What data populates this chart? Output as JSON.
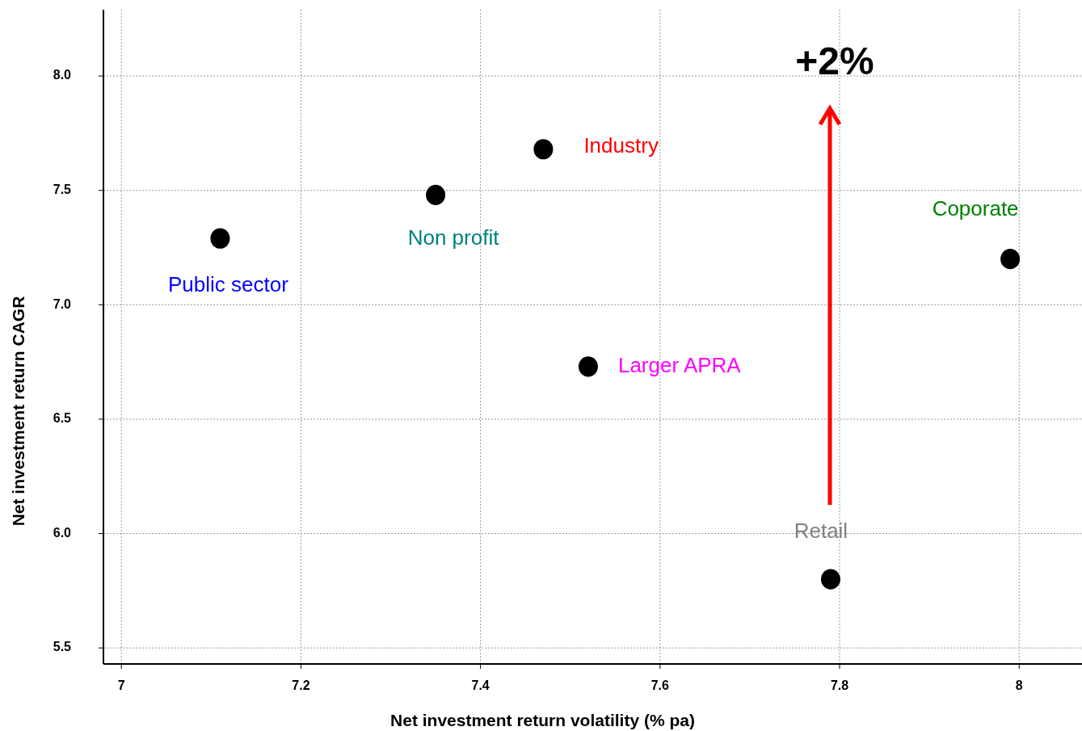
{
  "chart_data": {
    "type": "scatter",
    "xlabel": "Net investment return volatility (% pa)",
    "ylabel": "Net investment return CAGR",
    "xlim": [
      6.98,
      8.07
    ],
    "ylim": [
      5.43,
      8.29
    ],
    "xticks": [
      {
        "value": 7,
        "label": "7"
      },
      {
        "value": 7.2,
        "label": "7.2"
      },
      {
        "value": 7.4,
        "label": "7.4"
      },
      {
        "value": 7.6,
        "label": "7.6"
      },
      {
        "value": 7.8,
        "label": "7.8"
      },
      {
        "value": 8,
        "label": "8"
      }
    ],
    "yticks": [
      {
        "value": 5.5,
        "label": "5.5"
      },
      {
        "value": 6,
        "label": "6.0"
      },
      {
        "value": 6.5,
        "label": "6.5"
      },
      {
        "value": 7,
        "label": "7.0"
      },
      {
        "value": 7.5,
        "label": "7.5"
      },
      {
        "value": 8,
        "label": "8.0"
      }
    ],
    "grid": true,
    "marker": "circle",
    "series": [
      {
        "name": "Public sector",
        "color": "#000000",
        "x": [
          7.11
        ],
        "values": [
          7.29
        ]
      },
      {
        "name": "Non profit",
        "color": "#000000",
        "x": [
          7.35
        ],
        "values": [
          7.48
        ]
      },
      {
        "name": "Industry",
        "color": "#000000",
        "x": [
          7.47
        ],
        "values": [
          7.68
        ]
      },
      {
        "name": "Larger APRA",
        "color": "#000000",
        "x": [
          7.52
        ],
        "values": [
          6.73
        ]
      },
      {
        "name": "Retail",
        "color": "#000000",
        "x": [
          7.79
        ],
        "values": [
          5.8
        ]
      },
      {
        "name": "Coporate",
        "color": "#000000",
        "x": [
          7.99
        ],
        "values": [
          7.2
        ]
      }
    ],
    "annotations": [
      "+2%"
    ]
  }
}
